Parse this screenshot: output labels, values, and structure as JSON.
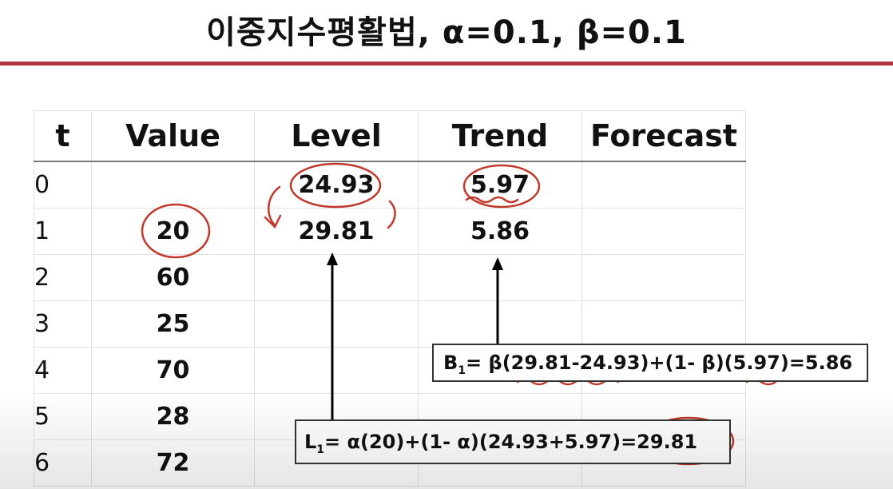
{
  "slide": {
    "title": "이중지수평활법, α=0.1, β=0.1"
  },
  "table": {
    "headers": [
      "t",
      "Value",
      "Level",
      "Trend",
      "Forecast"
    ],
    "rows": [
      {
        "t": "0",
        "value": "",
        "level": "24.93",
        "trend": "5.97",
        "forecast": ""
      },
      {
        "t": "1",
        "value": "20",
        "level": "29.81",
        "trend": "5.86",
        "forecast": ""
      },
      {
        "t": "2",
        "value": "60",
        "level": "",
        "trend": "",
        "forecast": ""
      },
      {
        "t": "3",
        "value": "25",
        "level": "",
        "trend": "",
        "forecast": ""
      },
      {
        "t": "4",
        "value": "70",
        "level": "",
        "trend": "",
        "forecast": ""
      },
      {
        "t": "5",
        "value": "28",
        "level": "",
        "trend": "",
        "forecast": ""
      },
      {
        "t": "6",
        "value": "72",
        "level": "",
        "trend": "",
        "forecast": ""
      }
    ]
  },
  "formulas": {
    "trend": {
      "symbol": "B",
      "subscript": "1",
      "expression": "= β(29.81-24.93)+(1- β)(5.97)=5.86"
    },
    "level": {
      "symbol": "L",
      "subscript": "1",
      "expression": "= α(20)+(1- α)(24.93+5.97)=29.81"
    }
  },
  "colors": {
    "accent_rule": "#b5333d",
    "annotation_ink": "#c0392b"
  }
}
